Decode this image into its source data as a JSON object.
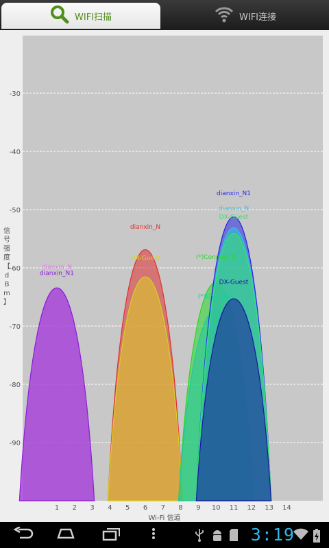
{
  "tabs": [
    {
      "label": "WIFI扫描",
      "icon": "search-icon",
      "active": true
    },
    {
      "label": "WIFI连接",
      "icon": "wifi-icon",
      "active": false
    }
  ],
  "status_bar": {
    "time": "3:19"
  },
  "colors": {
    "active_tab_text": "#4f8f1a",
    "clock": "#2fb7e9",
    "plot_bg": "#c8c8c8"
  },
  "chart_data": {
    "type": "area",
    "xlabel": "Wi-Fi 信道",
    "ylabel": "信号强度【dBm】",
    "x_ticks": [
      1,
      2,
      3,
      4,
      5,
      6,
      7,
      8,
      9,
      10,
      11,
      12,
      13,
      14
    ],
    "y_ticks": [
      -30,
      -40,
      -50,
      -60,
      -70,
      -80,
      -90
    ],
    "xlim": [
      -1,
      16
    ],
    "ylim": [
      -100,
      -20
    ],
    "grid": true,
    "series": [
      {
        "name": "dianxin_N",
        "channel": 1,
        "dbm": -61,
        "color": "#e07be8"
      },
      {
        "name": "dianxin_N1",
        "channel": 1,
        "dbm": -61,
        "color": "#8a1fd6"
      },
      {
        "name": "dianxin_N",
        "channel": 6,
        "dbm": -54,
        "color": "#e03030"
      },
      {
        "name": "DX-Guest",
        "channel": 6,
        "dbm": -59,
        "color": "#d8d020"
      },
      {
        "name": "(*)Connect-N",
        "channel": 10,
        "dbm": -60,
        "color": "#28d828"
      },
      {
        "name": "(*)ChinaNet",
        "channel": 10,
        "dbm": -65,
        "color": "#20c8a0"
      },
      {
        "name": "dianxin_N1",
        "channel": 11,
        "dbm": -48,
        "color": "#2828e0"
      },
      {
        "name": "dianxin_N",
        "channel": 11,
        "dbm": -50,
        "color": "#28c8e8"
      },
      {
        "name": "DX-Guest",
        "channel": 11,
        "dbm": -51,
        "color": "#38e068"
      },
      {
        "name": "DX-Guest",
        "channel": 11,
        "dbm": -63,
        "color": "#1818a0"
      }
    ]
  }
}
